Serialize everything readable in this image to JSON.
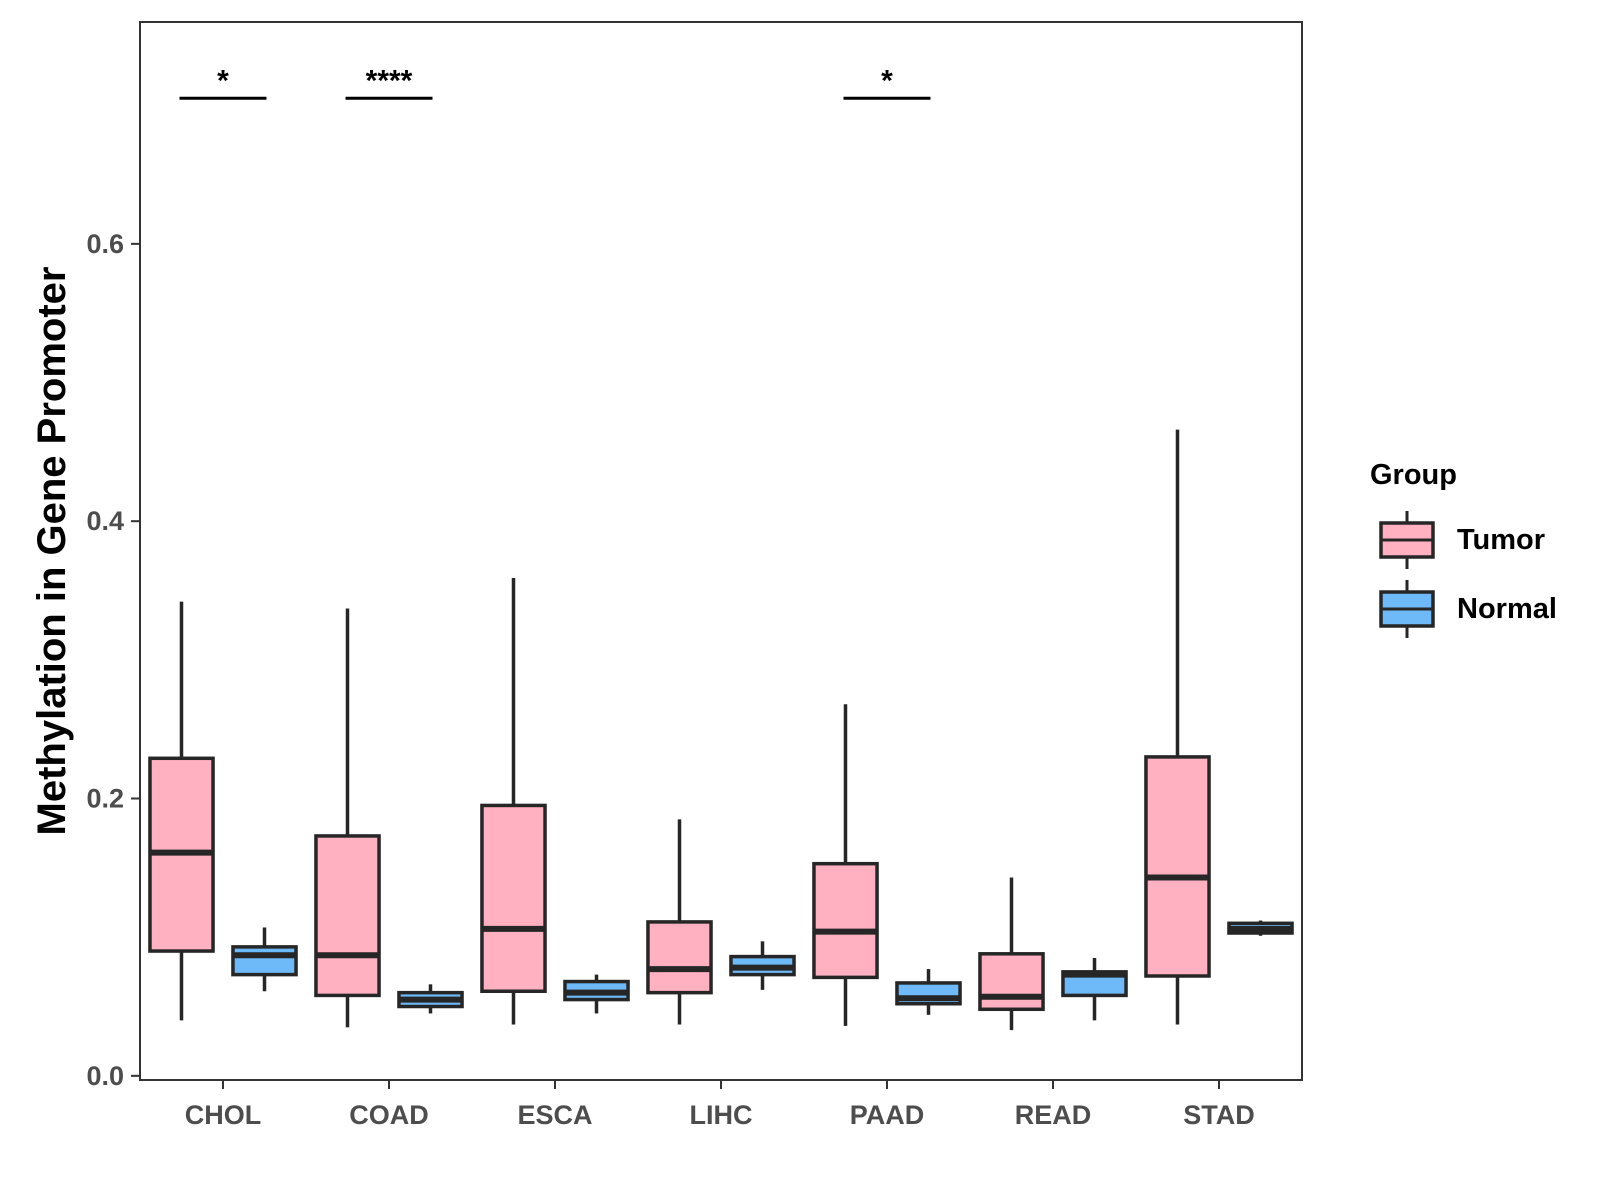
{
  "chart_data": {
    "type": "boxplot",
    "title": "",
    "xlabel": "",
    "ylabel": "Methylation in Gene Promoter",
    "ylim": [
      -0.003,
      0.76
    ],
    "yticks": [
      0.0,
      0.2,
      0.4,
      0.6
    ],
    "ytick_labels": [
      "0.0",
      "0.2",
      "0.4",
      "0.6"
    ],
    "grid": false,
    "categories": [
      "CHOL",
      "COAD",
      "ESCA",
      "LIHC",
      "PAAD",
      "READ",
      "STAD"
    ],
    "legend": {
      "title": "Group",
      "position": "right",
      "entries": [
        {
          "name": "Tumor",
          "color": "#FFB0C1"
        },
        {
          "name": "Normal",
          "color": "#6EB9F7"
        }
      ]
    },
    "series": [
      {
        "name": "Tumor",
        "color": "#FFB0C1",
        "boxes": [
          {
            "category": "CHOL",
            "min": 0.04,
            "q1": 0.09,
            "median": 0.161,
            "q3": 0.229,
            "max": 0.342
          },
          {
            "category": "COAD",
            "min": 0.035,
            "q1": 0.058,
            "median": 0.087,
            "q3": 0.173,
            "max": 0.337
          },
          {
            "category": "ESCA",
            "min": 0.037,
            "q1": 0.061,
            "median": 0.106,
            "q3": 0.195,
            "max": 0.359
          },
          {
            "category": "LIHC",
            "min": 0.037,
            "q1": 0.06,
            "median": 0.077,
            "q3": 0.111,
            "max": 0.185
          },
          {
            "category": "PAAD",
            "min": 0.036,
            "q1": 0.071,
            "median": 0.104,
            "q3": 0.153,
            "max": 0.268
          },
          {
            "category": "READ",
            "min": 0.033,
            "q1": 0.048,
            "median": 0.057,
            "q3": 0.088,
            "max": 0.143
          },
          {
            "category": "STAD",
            "min": 0.037,
            "q1": 0.072,
            "median": 0.143,
            "q3": 0.23,
            "max": 0.466
          }
        ]
      },
      {
        "name": "Normal",
        "color": "#6EB9F7",
        "boxes": [
          {
            "category": "CHOL",
            "min": 0.061,
            "q1": 0.073,
            "median": 0.087,
            "q3": 0.093,
            "max": 0.107
          },
          {
            "category": "COAD",
            "min": 0.045,
            "q1": 0.05,
            "median": 0.055,
            "q3": 0.06,
            "max": 0.066
          },
          {
            "category": "ESCA",
            "min": 0.045,
            "q1": 0.055,
            "median": 0.06,
            "q3": 0.068,
            "max": 0.073
          },
          {
            "category": "LIHC",
            "min": 0.062,
            "q1": 0.073,
            "median": 0.078,
            "q3": 0.086,
            "max": 0.097
          },
          {
            "category": "PAAD",
            "min": 0.044,
            "q1": 0.052,
            "median": 0.056,
            "q3": 0.067,
            "max": 0.077
          },
          {
            "category": "READ",
            "min": 0.04,
            "q1": 0.058,
            "median": 0.073,
            "q3": 0.075,
            "max": 0.085
          },
          {
            "category": "STAD",
            "min": 0.101,
            "q1": 0.103,
            "median": 0.106,
            "q3": 0.11,
            "max": 0.112
          }
        ]
      }
    ],
    "annotations": [
      {
        "category": "CHOL",
        "label": "*",
        "y": 0.705
      },
      {
        "category": "COAD",
        "label": "****",
        "y": 0.705
      },
      {
        "category": "PAAD",
        "label": "*",
        "y": 0.705
      }
    ]
  }
}
